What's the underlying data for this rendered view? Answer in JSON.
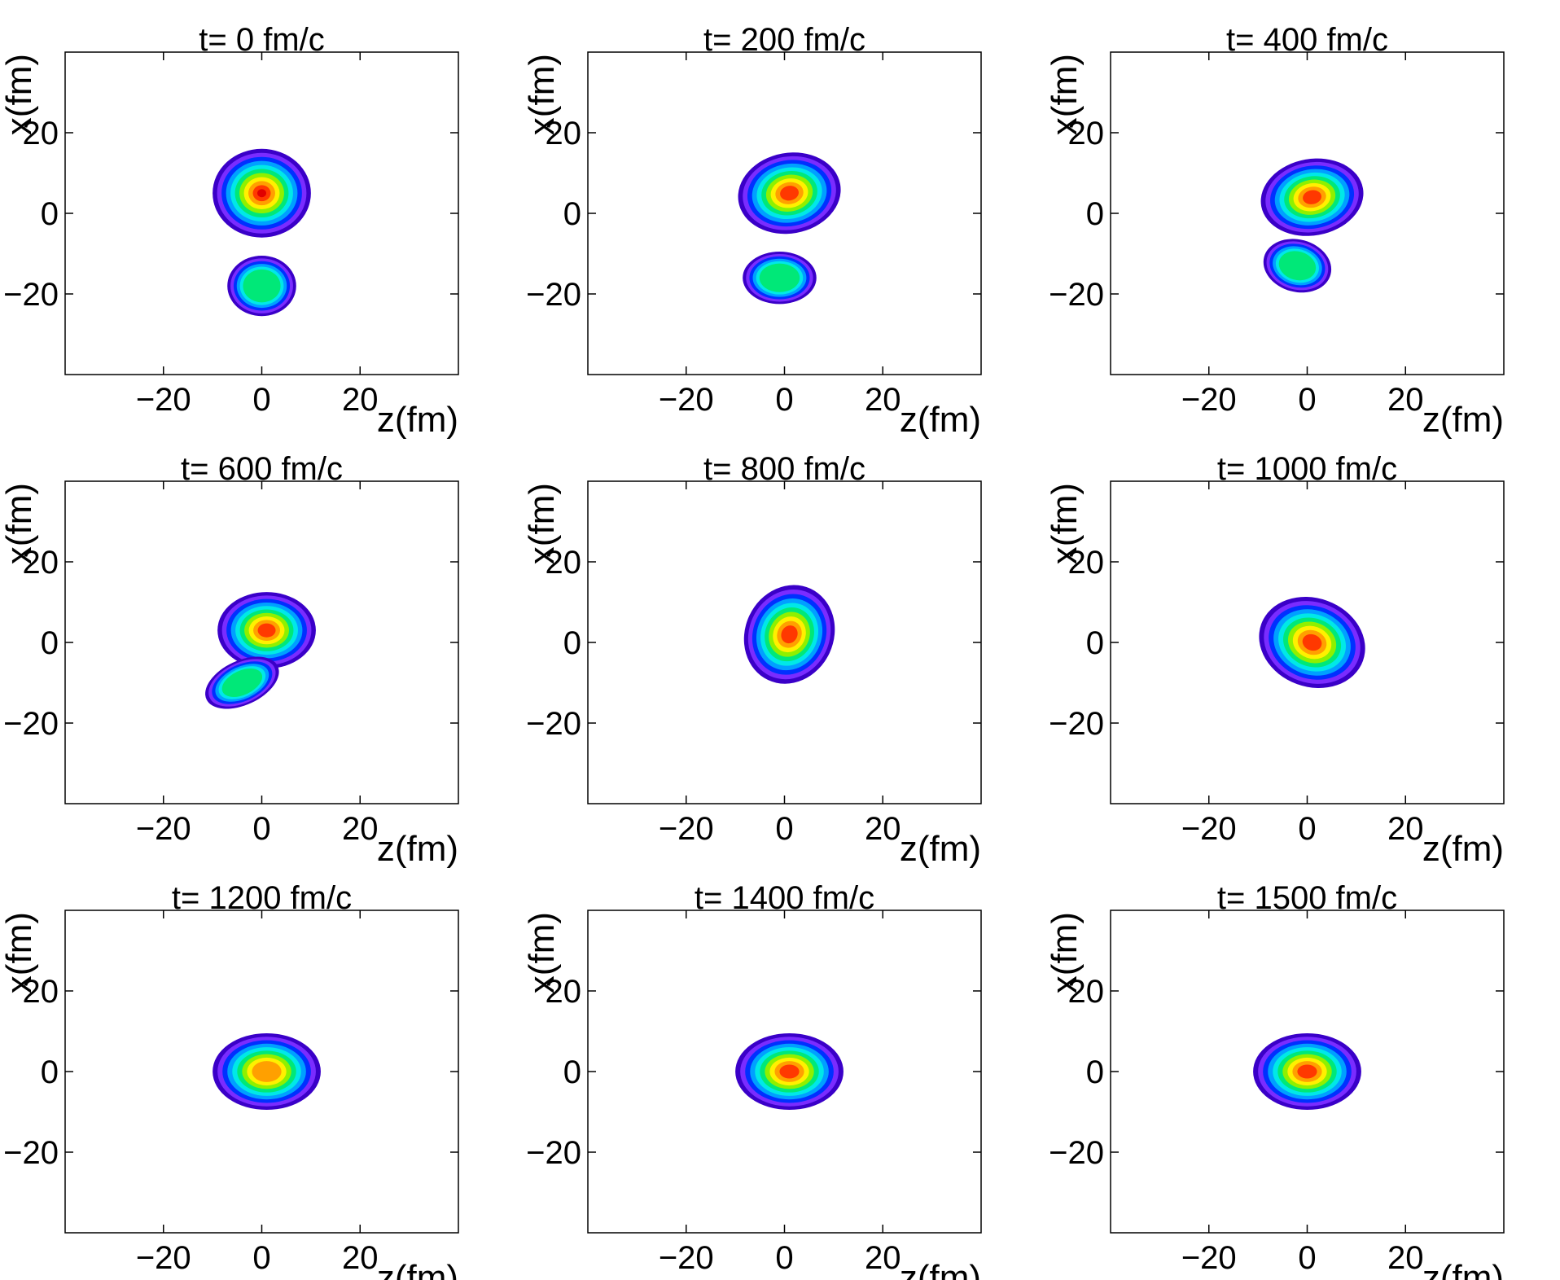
{
  "chart_data": {
    "type": "contour",
    "xlabel": "z(fm)",
    "ylabel": "x(fm)",
    "xlim": [
      -40,
      40
    ],
    "ylim": [
      -40,
      40
    ],
    "xticks": [
      -20,
      0,
      20
    ],
    "yticks": [
      -20,
      0,
      20
    ],
    "xtick_labels": [
      "−20",
      "0",
      "20"
    ],
    "ytick_labels": [
      "−20",
      "0",
      "20"
    ],
    "colormap": [
      "#3a00c8",
      "#7a2cff",
      "#0030ff",
      "#00a0ff",
      "#00e8e8",
      "#00e878",
      "#8ff000",
      "#fff000",
      "#ffa000",
      "#ff3800",
      "#e00000"
    ],
    "panels": [
      {
        "title": "t= 0 fm/c",
        "blobs": [
          {
            "cx": 0,
            "cy": 5,
            "rx": 10,
            "ry": 11,
            "peak": 1.0,
            "tilt": 0
          },
          {
            "cx": 0,
            "cy": -18,
            "rx": 7,
            "ry": 7.5,
            "peak": 0.55,
            "tilt": 0
          }
        ]
      },
      {
        "title": "t= 200 fm/c",
        "blobs": [
          {
            "cx": 1,
            "cy": 5,
            "rx": 10.5,
            "ry": 10,
            "peak": 0.95,
            "tilt": -10
          },
          {
            "cx": -1,
            "cy": -16,
            "rx": 7.5,
            "ry": 6.5,
            "peak": 0.55,
            "tilt": 0
          }
        ]
      },
      {
        "title": "t= 400 fm/c",
        "blobs": [
          {
            "cx": 1,
            "cy": 4,
            "rx": 10.5,
            "ry": 9.5,
            "peak": 0.95,
            "tilt": -10
          },
          {
            "cx": -2,
            "cy": -13,
            "rx": 7,
            "ry": 6.5,
            "peak": 0.55,
            "tilt": 15
          }
        ]
      },
      {
        "title": "t= 600 fm/c",
        "blobs": [
          {
            "cx": 1,
            "cy": 3,
            "rx": 10,
            "ry": 9.5,
            "peak": 0.95,
            "tilt": 0
          },
          {
            "cx": -4,
            "cy": -10,
            "rx": 8,
            "ry": 5.5,
            "peak": 0.55,
            "tilt": -25
          }
        ]
      },
      {
        "title": "t= 800 fm/c",
        "blobs": [
          {
            "cx": 1,
            "cy": 2,
            "rx": 9,
            "ry": 12.5,
            "peak": 0.95,
            "tilt": 25
          }
        ]
      },
      {
        "title": "t= 1000 fm/c",
        "blobs": [
          {
            "cx": 1,
            "cy": 0,
            "rx": 11,
            "ry": 11,
            "peak": 0.95,
            "tilt": 20
          }
        ]
      },
      {
        "title": "t= 1200 fm/c",
        "blobs": [
          {
            "cx": 1,
            "cy": 0,
            "rx": 11,
            "ry": 9.5,
            "peak": 0.85,
            "tilt": 0
          }
        ]
      },
      {
        "title": "t= 1400 fm/c",
        "blobs": [
          {
            "cx": 1,
            "cy": 0,
            "rx": 11,
            "ry": 9.5,
            "peak": 0.9,
            "tilt": 0
          }
        ]
      },
      {
        "title": "t= 1500 fm/c",
        "blobs": [
          {
            "cx": 0,
            "cy": 0,
            "rx": 11,
            "ry": 9.5,
            "peak": 0.9,
            "tilt": 0
          }
        ]
      }
    ]
  }
}
